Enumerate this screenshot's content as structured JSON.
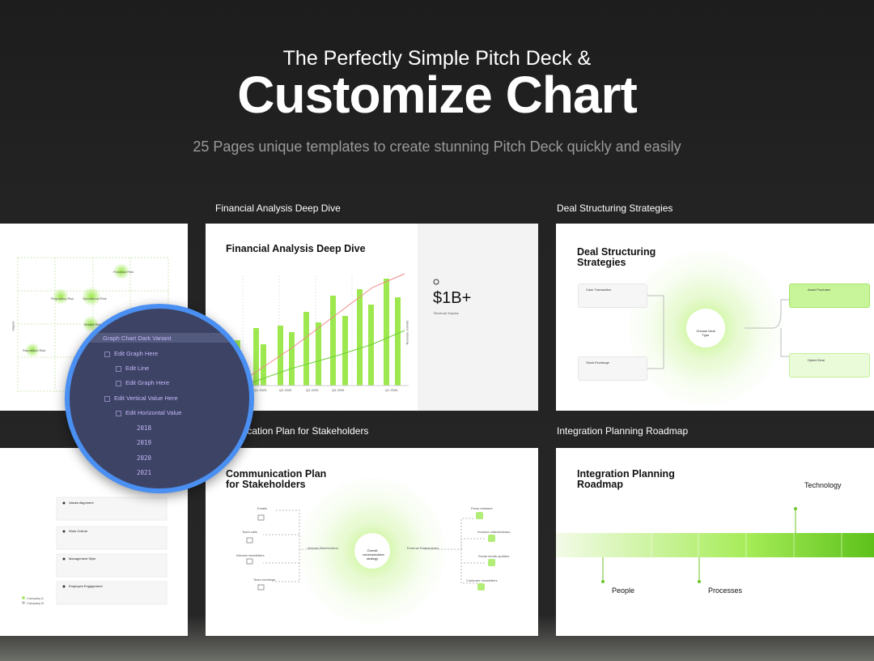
{
  "header": {
    "line1": "The Perfectly Simple Pitch Deck &",
    "title": "Customize Chart",
    "subtitle": "25 Pages unique templates to create stunning Pitch Deck quickly and easily"
  },
  "slides": [
    {
      "caption": "Financial Analysis Deep Dive",
      "title": "Financial Analysis Deep Dive",
      "metric": "$1B+",
      "metric_label": "Revenue Surplus",
      "x_labels": [
        "Q1 2025",
        "Q2 2025",
        "Q3 2025",
        "Q4 2025",
        "Q1 2026"
      ],
      "axis_label": "Revenue Growth"
    },
    {
      "caption": "Deal Structuring Strategies",
      "title": "Deal Structuring Strategies",
      "center": "Choose Deal Type",
      "options": [
        "Cash Transaction",
        "Stock Exchange",
        "Asset Purchase",
        "Hybrid Deal"
      ]
    },
    {
      "caption": "Communication Plan for Stakeholders",
      "title": "Communication Plan for Stakeholders",
      "center": "Overall communication strategy",
      "internal_label": "Internal Stakeholders",
      "external_label": "External Stakeholders",
      "internal": [
        "Emails",
        "Team calls",
        "Internal newsletters",
        "Team meetings"
      ],
      "external": [
        "Press releases",
        "Investor calls/webinars",
        "Social media updates",
        "Customer newsletters"
      ]
    },
    {
      "caption": "Integration Planning Roadmap",
      "title": "Integration Planning Roadmap",
      "stages": [
        "People",
        "Processes",
        "Technology"
      ]
    }
  ],
  "risk_slide": {
    "labels": [
      "Financial Risk",
      "Regulatory Risk",
      "Operational Risk",
      "Market Risk",
      "Reputation Risk"
    ],
    "axis": "Impact"
  },
  "culture_slide": {
    "items": [
      "Values Alignment",
      "Work Culture",
      "Management Style",
      "Employee Engagement"
    ],
    "legend": [
      "Company A",
      "Company B"
    ]
  },
  "menu": {
    "items": [
      "Graph Chart Dark Variant",
      "Edit Graph Here",
      "Edit Line",
      "Edit Graph Here",
      "Edit Vertical Value Here",
      "Edit Horizontal Value"
    ],
    "years": [
      "2018",
      "2019",
      "2020",
      "2021"
    ]
  }
}
